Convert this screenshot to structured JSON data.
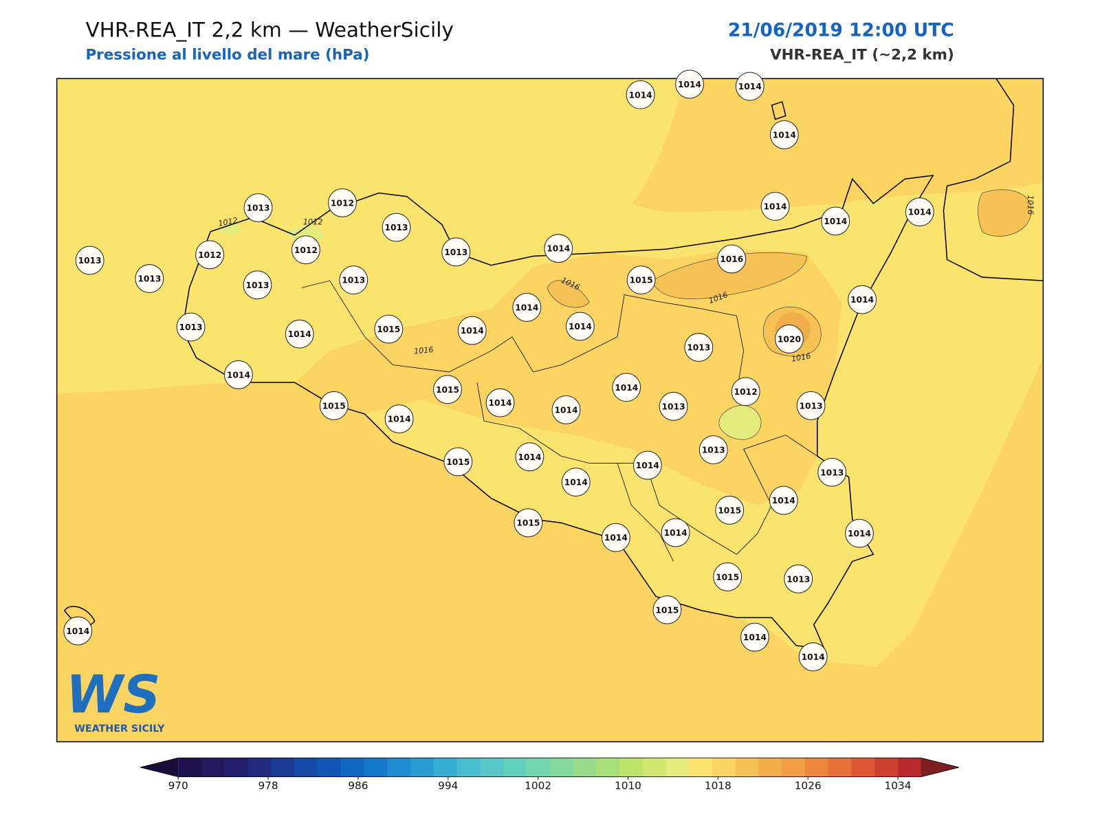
{
  "header": {
    "title": "VHR-REA_IT 2,2 km — WeatherSicily",
    "subtitle": "Pressione al livello del mare (hPa)",
    "datetime": "21/06/2019 12:00 UTC",
    "model": "VHR-REA_IT (~2,2 km)"
  },
  "map": {
    "stations": [
      1014,
      1014,
      1014,
      1014,
      1013,
      1012,
      1013,
      1013,
      1014,
      1014,
      1014,
      1014,
      1013,
      1012,
      1012,
      1013,
      1013,
      1013,
      1015,
      1016,
      1014,
      1014,
      1013,
      1014,
      1015,
      1014,
      1014,
      1020,
      1013,
      1014,
      1015,
      1014,
      1012,
      1015,
      1014,
      1014,
      1014,
      1013,
      1013,
      1013,
      1015,
      1014,
      1014,
      1014,
      1013,
      1014,
      1015,
      1015,
      1014,
      1014,
      1014,
      1015,
      1013,
      1015,
      1014,
      1014,
      1014
    ],
    "contour_labels": [
      1012,
      1012,
      1016,
      1016,
      1016,
      1016,
      1016
    ]
  },
  "logo": {
    "mark": "WS",
    "caption": "WEATHER SICILY"
  },
  "colorbar": {
    "lim": [
      970,
      1034
    ],
    "ticks": [
      970,
      978,
      986,
      994,
      1002,
      1010,
      1018,
      1026,
      1034
    ],
    "colors": [
      "#1f1250",
      "#24195e",
      "#231f6e",
      "#1f2a7f",
      "#1a3a93",
      "#1549a6",
      "#1158b5",
      "#0f68c2",
      "#1478c9",
      "#1e8acf",
      "#289bd3",
      "#35b0d4",
      "#48bcd0",
      "#58c6c8",
      "#62cfbe",
      "#72d6b0",
      "#84da9e",
      "#96dc8a",
      "#a8df78",
      "#bde46a",
      "#d2e870",
      "#e3eb7c",
      "#fbe46e",
      "#fbd462",
      "#f6c155",
      "#f2ad4b",
      "#f09c44",
      "#ec873d",
      "#e67038",
      "#dd5832",
      "#cc402f",
      "#b9292c"
    ],
    "under_color": "#190d3c",
    "over_color": "#7c1f1e"
  }
}
